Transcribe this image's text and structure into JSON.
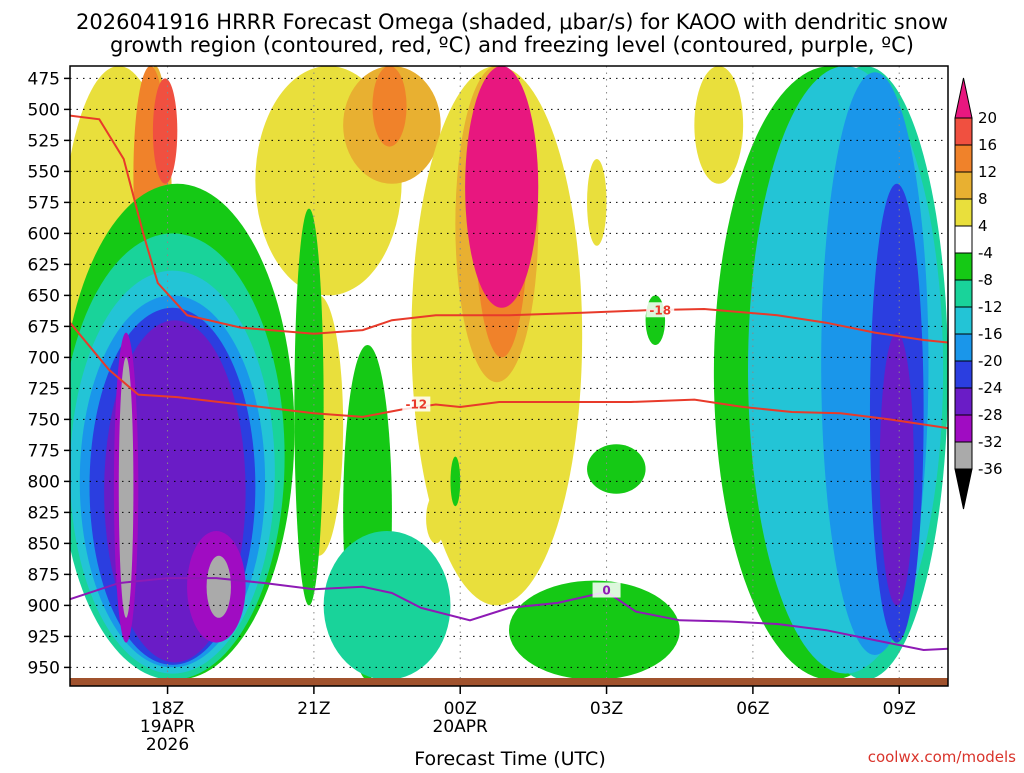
{
  "chart_data": {
    "type": "heatmap",
    "title_line1": "2026041916 HRRR Forecast Omega (shaded, μbar/s) for KAOO with dendritic snow",
    "title_line2": "growth region (contoured, red, ºC) and freezing level (contoured, purple, ºC)",
    "xlabel": "Forecast Time (UTC)",
    "credit": "coolwx.com/models",
    "y_axis": {
      "quantity": "pressure (mb)",
      "inverted": true,
      "range": [
        465,
        965
      ],
      "ticks": [
        "475",
        "500",
        "525",
        "550",
        "575",
        "600",
        "625",
        "650",
        "675",
        "700",
        "725",
        "750",
        "775",
        "800",
        "825",
        "850",
        "875",
        "900",
        "925",
        "950"
      ]
    },
    "x_axis": {
      "quantity": "forecast hour (UTC)",
      "range": [
        "2026-04-19 16Z",
        "2026-04-20 10Z"
      ],
      "ticks": [
        {
          "hour": 18,
          "label": "18Z",
          "sub1": "19APR",
          "sub2": "2026"
        },
        {
          "hour": 21,
          "label": "21Z",
          "sub1": "",
          "sub2": ""
        },
        {
          "hour": 24,
          "label": "00Z",
          "sub1": "20APR",
          "sub2": ""
        },
        {
          "hour": 27,
          "label": "03Z",
          "sub1": "",
          "sub2": ""
        },
        {
          "hour": 30,
          "label": "06Z",
          "sub1": "",
          "sub2": ""
        },
        {
          "hour": 33,
          "label": "09Z",
          "sub1": "",
          "sub2": ""
        }
      ]
    },
    "colorbar": {
      "labels": [
        "20",
        "16",
        "12",
        "8",
        "4",
        "-4",
        "-8",
        "-12",
        "-16",
        "-20",
        "-24",
        "-28",
        "-32",
        "-36"
      ],
      "bands": [
        {
          "min": 20,
          "color": "#e8177f"
        },
        {
          "min": 16,
          "color": "#f05040"
        },
        {
          "min": 12,
          "color": "#f0822a"
        },
        {
          "min": 8,
          "color": "#e8b031"
        },
        {
          "min": 4,
          "color": "#e9df3c"
        },
        {
          "min": -4,
          "color": "#ffffff"
        },
        {
          "min": -8,
          "color": "#15c915"
        },
        {
          "min": -12,
          "color": "#19d39a"
        },
        {
          "min": -16,
          "color": "#23c4d6"
        },
        {
          "min": -20,
          "color": "#1a96ea"
        },
        {
          "min": -24,
          "color": "#2b3ee0"
        },
        {
          "min": -28,
          "color": "#6a1cc6"
        },
        {
          "min": -32,
          "color": "#a00cc2"
        },
        {
          "min": -36,
          "color": "#aaaaaa"
        },
        {
          "min": -999,
          "color": "#000000"
        }
      ]
    },
    "omega_regions": [
      {
        "level": 4,
        "x0": 15.8,
        "x1": 18.2,
        "p0": 465,
        "p1": 800
      },
      {
        "level": 8,
        "x0": 17.4,
        "x1": 18.1,
        "p0": 465,
        "p1": 740
      },
      {
        "level": 12,
        "x0": 17.3,
        "x1": 18.0,
        "p0": 465,
        "p1": 640
      },
      {
        "level": 16,
        "x0": 17.7,
        "x1": 18.2,
        "p0": 475,
        "p1": 560
      },
      {
        "level": 8,
        "x0": 17.8,
        "x1": 18.4,
        "p0": 660,
        "p1": 760
      },
      {
        "level": 4,
        "x0": 20.6,
        "x1": 21.6,
        "p0": 650,
        "p1": 860
      },
      {
        "level": 8,
        "x0": 20.9,
        "x1": 21.2,
        "p0": 700,
        "p1": 830
      },
      {
        "level": 4,
        "x0": 19.8,
        "x1": 22.8,
        "p0": 465,
        "p1": 650
      },
      {
        "level": 8,
        "x0": 21.6,
        "x1": 23.6,
        "p0": 465,
        "p1": 560
      },
      {
        "level": 12,
        "x0": 22.2,
        "x1": 22.9,
        "p0": 465,
        "p1": 530
      },
      {
        "level": 4,
        "x0": 23.0,
        "x1": 26.5,
        "p0": 465,
        "p1": 900
      },
      {
        "level": 8,
        "x0": 23.9,
        "x1": 25.6,
        "p0": 465,
        "p1": 720
      },
      {
        "level": 12,
        "x0": 24.3,
        "x1": 25.4,
        "p0": 465,
        "p1": 700
      },
      {
        "level": 20,
        "x0": 24.1,
        "x1": 25.6,
        "p0": 465,
        "p1": 660
      },
      {
        "level": 4,
        "x0": 26.6,
        "x1": 27.0,
        "p0": 540,
        "p1": 610
      },
      {
        "level": 4,
        "x0": 23.3,
        "x1": 23.7,
        "p0": 810,
        "p1": 850
      },
      {
        "level": 4,
        "x0": 28.8,
        "x1": 29.8,
        "p0": 465,
        "p1": 560
      },
      {
        "level": -8,
        "x0": 15.8,
        "x1": 20.6,
        "p0": 560,
        "p1": 960
      },
      {
        "level": -12,
        "x0": 15.8,
        "x1": 20.4,
        "p0": 600,
        "p1": 960
      },
      {
        "level": -16,
        "x0": 16.0,
        "x1": 20.2,
        "p0": 630,
        "p1": 955
      },
      {
        "level": -20,
        "x0": 16.2,
        "x1": 20.0,
        "p0": 650,
        "p1": 950
      },
      {
        "level": -24,
        "x0": 16.4,
        "x1": 19.8,
        "p0": 660,
        "p1": 948
      },
      {
        "level": -28,
        "x0": 16.7,
        "x1": 19.6,
        "p0": 670,
        "p1": 946
      },
      {
        "level": -32,
        "x0": 16.9,
        "x1": 17.4,
        "p0": 680,
        "p1": 930
      },
      {
        "level": -36,
        "x0": 17.0,
        "x1": 17.3,
        "p0": 700,
        "p1": 910
      },
      {
        "level": -32,
        "x0": 18.4,
        "x1": 19.6,
        "p0": 840,
        "p1": 930
      },
      {
        "level": -36,
        "x0": 18.8,
        "x1": 19.3,
        "p0": 860,
        "p1": 910
      },
      {
        "level": -8,
        "x0": 20.6,
        "x1": 21.2,
        "p0": 580,
        "p1": 900
      },
      {
        "level": -8,
        "x0": 21.6,
        "x1": 22.6,
        "p0": 690,
        "p1": 960
      },
      {
        "level": -12,
        "x0": 21.2,
        "x1": 23.8,
        "p0": 840,
        "p1": 960
      },
      {
        "level": -8,
        "x0": 23.8,
        "x1": 24.0,
        "p0": 780,
        "p1": 820
      },
      {
        "level": -8,
        "x0": 27.8,
        "x1": 28.2,
        "p0": 650,
        "p1": 690
      },
      {
        "level": -8,
        "x0": 26.6,
        "x1": 27.8,
        "p0": 770,
        "p1": 810
      },
      {
        "level": -8,
        "x0": 25.0,
        "x1": 28.5,
        "p0": 880,
        "p1": 960
      },
      {
        "level": -8,
        "x0": 29.2,
        "x1": 34.0,
        "p0": 465,
        "p1": 960
      },
      {
        "level": -12,
        "x0": 30.6,
        "x1": 34.0,
        "p0": 465,
        "p1": 960
      },
      {
        "level": -16,
        "x0": 29.9,
        "x1": 33.9,
        "p0": 465,
        "p1": 955
      },
      {
        "level": -20,
        "x0": 31.4,
        "x1": 33.6,
        "p0": 470,
        "p1": 940
      },
      {
        "level": -24,
        "x0": 32.4,
        "x1": 33.5,
        "p0": 560,
        "p1": 930
      },
      {
        "level": -28,
        "x0": 32.6,
        "x1": 33.3,
        "p0": 680,
        "p1": 900
      }
    ],
    "contours": [
      {
        "name": "dgz-18",
        "label": "-18",
        "color": "#e83a2a",
        "label_at": {
          "hour": 28.1,
          "p": 662
        },
        "points": [
          [
            16.0,
            505
          ],
          [
            16.6,
            508
          ],
          [
            17.1,
            540
          ],
          [
            17.5,
            600
          ],
          [
            17.8,
            640
          ],
          [
            18.4,
            666
          ],
          [
            19.5,
            676
          ],
          [
            21.0,
            681
          ],
          [
            22.0,
            678
          ],
          [
            22.6,
            670
          ],
          [
            23.5,
            666
          ],
          [
            25.0,
            666
          ],
          [
            26.5,
            664
          ],
          [
            27.8,
            662
          ],
          [
            29.0,
            661
          ],
          [
            30.5,
            666
          ],
          [
            31.5,
            672
          ],
          [
            32.5,
            680
          ],
          [
            33.5,
            686
          ],
          [
            34.0,
            688
          ]
        ]
      },
      {
        "name": "dgz-12",
        "label": "-12",
        "color": "#e83a2a",
        "label_at": {
          "hour": 23.1,
          "p": 738
        },
        "points": [
          [
            16.0,
            672
          ],
          [
            16.8,
            710
          ],
          [
            17.4,
            730
          ],
          [
            18.2,
            732
          ],
          [
            19.5,
            738
          ],
          [
            21.0,
            745
          ],
          [
            22.0,
            748
          ],
          [
            22.8,
            742
          ],
          [
            23.5,
            738
          ],
          [
            24.0,
            740
          ],
          [
            24.8,
            736
          ],
          [
            26.0,
            736
          ],
          [
            27.5,
            736
          ],
          [
            28.8,
            734
          ],
          [
            29.8,
            740
          ],
          [
            30.8,
            744
          ],
          [
            31.8,
            745
          ],
          [
            32.8,
            750
          ],
          [
            34.0,
            757
          ]
        ]
      },
      {
        "name": "freezing-0",
        "label": "0",
        "color": "#8e1ab5",
        "label_at": {
          "hour": 27.0,
          "p": 888
        },
        "points": [
          [
            16.0,
            895
          ],
          [
            17.0,
            882
          ],
          [
            18.0,
            878
          ],
          [
            19.0,
            878
          ],
          [
            20.0,
            882
          ],
          [
            21.0,
            887
          ],
          [
            22.0,
            885
          ],
          [
            22.6,
            890
          ],
          [
            23.2,
            902
          ],
          [
            24.2,
            912
          ],
          [
            25.0,
            902
          ],
          [
            26.0,
            898
          ],
          [
            27.0,
            889
          ],
          [
            27.6,
            905
          ],
          [
            28.5,
            912
          ],
          [
            29.5,
            913
          ],
          [
            30.5,
            915
          ],
          [
            31.5,
            920
          ],
          [
            32.5,
            928
          ],
          [
            33.5,
            936
          ],
          [
            34.0,
            935
          ]
        ]
      }
    ]
  }
}
